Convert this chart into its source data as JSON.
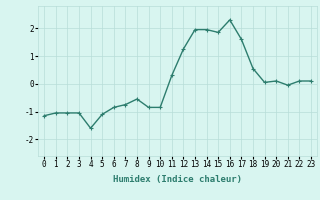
{
  "x": [
    0,
    1,
    2,
    3,
    4,
    5,
    6,
    7,
    8,
    9,
    10,
    11,
    12,
    13,
    14,
    15,
    16,
    17,
    18,
    19,
    20,
    21,
    22,
    23
  ],
  "y": [
    -1.15,
    -1.05,
    -1.05,
    -1.05,
    -1.6,
    -1.1,
    -0.85,
    -0.75,
    -0.55,
    -0.85,
    -0.85,
    0.3,
    1.25,
    1.95,
    1.95,
    1.85,
    2.3,
    1.6,
    0.55,
    0.05,
    0.1,
    -0.05,
    0.1,
    0.1
  ],
  "line_color": "#2d7d6e",
  "marker": "+",
  "marker_size": 3,
  "bg_color": "#d8f5f0",
  "grid_color": "#b8ddd8",
  "xlabel": "Humidex (Indice chaleur)",
  "xlim": [
    -0.5,
    23.5
  ],
  "ylim": [
    -2.6,
    2.8
  ],
  "yticks": [
    -2,
    -1,
    0,
    1,
    2
  ],
  "xticks": [
    0,
    1,
    2,
    3,
    4,
    5,
    6,
    7,
    8,
    9,
    10,
    11,
    12,
    13,
    14,
    15,
    16,
    17,
    18,
    19,
    20,
    21,
    22,
    23
  ],
  "label_fontsize": 6.5,
  "tick_fontsize": 5.5,
  "linewidth": 1.0,
  "markeredgewidth": 0.8
}
